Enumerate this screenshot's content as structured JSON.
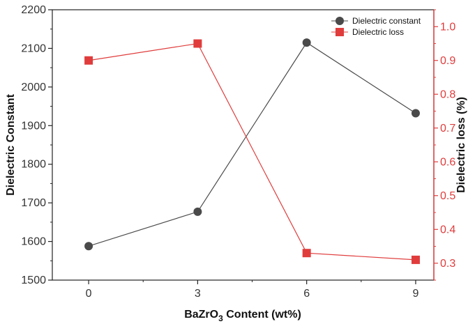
{
  "chart_data": {
    "type": "line",
    "x": [
      0,
      3,
      6,
      9
    ],
    "xticks": [
      "0",
      "3",
      "6",
      "9"
    ],
    "xlim": [
      -1,
      9.5
    ],
    "xlabel": {
      "prefix": "BaZrO",
      "subscript": "3",
      "suffix": " Content (wt%)"
    },
    "left_axis": {
      "label": "Dielectric Constant",
      "ylim": [
        1500,
        2200
      ],
      "ticks": [
        "1500",
        "1600",
        "1700",
        "1800",
        "1900",
        "2000",
        "2100",
        "2200"
      ]
    },
    "right_axis": {
      "label": "Dielectric loss (%)",
      "ylim": [
        0.25,
        1.05
      ],
      "ticks": [
        "0.3",
        "0.4",
        "0.5",
        "0.6",
        "0.7",
        "0.8",
        "0.9",
        "1.0"
      ],
      "color": "#e03c3c"
    },
    "series": [
      {
        "name": "Dielectric constant",
        "axis": "left",
        "values": [
          1588,
          1677,
          2115,
          1932
        ],
        "color": "#4a4a4a",
        "marker": "circle"
      },
      {
        "name": "Dielectric loss",
        "axis": "right",
        "values": [
          0.9,
          0.95,
          0.33,
          0.31
        ],
        "color": "#e03c3c",
        "marker": "square"
      }
    ],
    "legend": "top-right",
    "grid": false
  }
}
